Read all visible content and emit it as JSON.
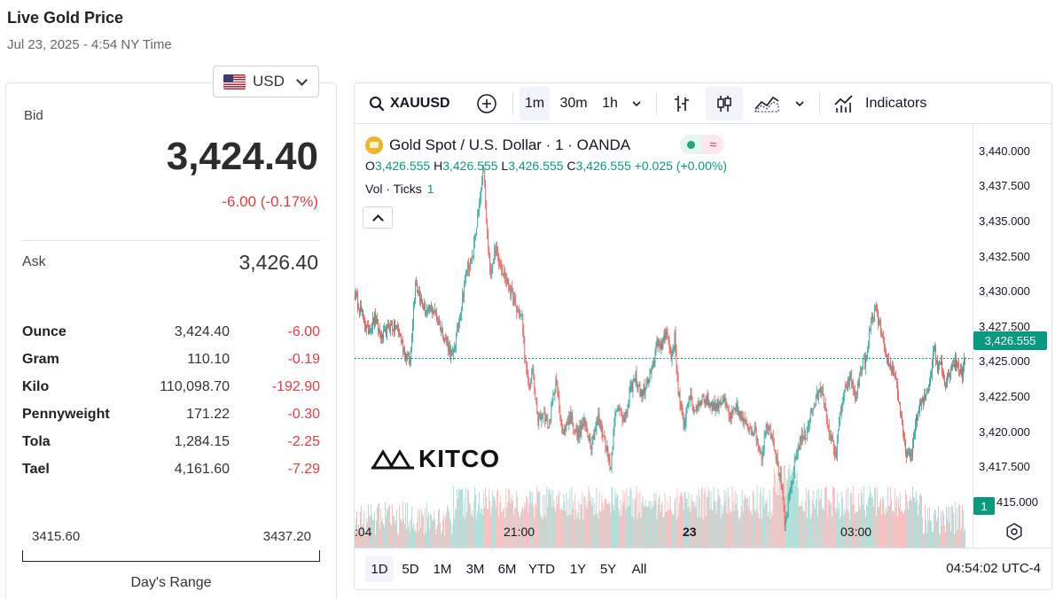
{
  "page": {
    "title": "Live Gold Price",
    "subtitle": "Jul 23, 2025 - 4:54 NY Time"
  },
  "currency": {
    "selected": "USD",
    "flag_icon": "us-flag-icon"
  },
  "quote": {
    "bid_label": "Bid",
    "bid": "3,424.40",
    "bid_change": "-6.00 (-0.17%)",
    "ask_label": "Ask",
    "ask": "3,426.40"
  },
  "units": [
    {
      "name": "Ounce",
      "price": "3,424.40",
      "change": "-6.00"
    },
    {
      "name": "Gram",
      "price": "110.10",
      "change": "-0.19"
    },
    {
      "name": "Kilo",
      "price": "110,098.70",
      "change": "-192.90"
    },
    {
      "name": "Pennyweight",
      "price": "171.22",
      "change": "-0.30"
    },
    {
      "name": "Tola",
      "price": "1,284.15",
      "change": "-2.25"
    },
    {
      "name": "Tael",
      "price": "4,161.60",
      "change": "-7.29"
    }
  ],
  "day_range": {
    "low": "3415.60",
    "high": "3437.20",
    "label": "Day's Range"
  },
  "chart_toolbar": {
    "symbol": "XAUUSD",
    "intervals": [
      "1m",
      "30m",
      "1h"
    ],
    "active_interval": "1m",
    "indicators_label": "Indicators"
  },
  "chart_legend": {
    "title": "Gold Spot / U.S. Dollar · 1 · OANDA",
    "o_label": "O",
    "o": "3,426.555",
    "h_label": "H",
    "h": "3,426.555",
    "l_label": "L",
    "l": "3,426.555",
    "c_label": "C",
    "c": "3,426.555",
    "change": "+0.025 (+0.00%)",
    "vol_label": "Vol · Ticks",
    "vol_value": "1",
    "watermark": "KITCO"
  },
  "chart_data": {
    "type": "candlestick",
    "symbol": "XAUUSD",
    "interval": "1m",
    "price_ticks": [
      "3,440.000",
      "3,437.500",
      "3,435.000",
      "3,432.500",
      "3,430.000",
      "3,427.500",
      "3,425.000",
      "3,422.500",
      "3,420.000",
      "3,417.500",
      "415.000"
    ],
    "y_range": [
      3414.9,
      3441.0
    ],
    "last_price": 3426.555,
    "last_price_label": "3,426.555",
    "volume_badge": "1",
    "time_ticks": [
      ":04",
      "21:00",
      "23",
      "03:00"
    ],
    "bold_time_tick": "23",
    "anchors": [
      [
        0,
        3430.5
      ],
      [
        6,
        3429.6
      ],
      [
        14,
        3428.2
      ],
      [
        22,
        3429.0
      ],
      [
        30,
        3427.8
      ],
      [
        40,
        3428.6
      ],
      [
        48,
        3428.4
      ],
      [
        56,
        3426.9
      ],
      [
        62,
        3426.4
      ],
      [
        68,
        3431.4
      ],
      [
        74,
        3430.1
      ],
      [
        80,
        3429.4
      ],
      [
        88,
        3429.6
      ],
      [
        96,
        3428.6
      ],
      [
        104,
        3427.4
      ],
      [
        110,
        3426.6
      ],
      [
        114,
        3427.9
      ],
      [
        120,
        3429.9
      ],
      [
        126,
        3432.1
      ],
      [
        132,
        3432.6
      ],
      [
        138,
        3435.2
      ],
      [
        142,
        3436.8
      ],
      [
        145,
        3438.3
      ],
      [
        148,
        3434.9
      ],
      [
        152,
        3431.8
      ],
      [
        158,
        3433.3
      ],
      [
        164,
        3432.4
      ],
      [
        170,
        3431.4
      ],
      [
        176,
        3430.6
      ],
      [
        182,
        3429.5
      ],
      [
        188,
        3429.1
      ],
      [
        192,
        3426.1
      ],
      [
        196,
        3424.7
      ],
      [
        200,
        3425.9
      ],
      [
        206,
        3422.6
      ],
      [
        212,
        3423.3
      ],
      [
        218,
        3422.3
      ],
      [
        226,
        3425.3
      ],
      [
        234,
        3421.9
      ],
      [
        242,
        3423.1
      ],
      [
        250,
        3421.8
      ],
      [
        258,
        3422.6
      ],
      [
        266,
        3421.3
      ],
      [
        274,
        3422.9
      ],
      [
        282,
        3421.4
      ],
      [
        288,
        3419.8
      ],
      [
        292,
        3422.9
      ],
      [
        298,
        3423.6
      ],
      [
        304,
        3422.6
      ],
      [
        310,
        3424.6
      ],
      [
        316,
        3425.4
      ],
      [
        322,
        3424.3
      ],
      [
        330,
        3425.1
      ],
      [
        336,
        3426.1
      ],
      [
        340,
        3427.9
      ],
      [
        344,
        3426.9
      ],
      [
        350,
        3428.4
      ],
      [
        356,
        3426.6
      ],
      [
        360,
        3427.8
      ],
      [
        364,
        3424.6
      ],
      [
        370,
        3422.3
      ],
      [
        376,
        3424.3
      ],
      [
        382,
        3423.3
      ],
      [
        390,
        3424.1
      ],
      [
        398,
        3423.9
      ],
      [
        406,
        3423.6
      ],
      [
        414,
        3424.1
      ],
      [
        422,
        3422.9
      ],
      [
        430,
        3423.5
      ],
      [
        438,
        3422.6
      ],
      [
        446,
        3422.3
      ],
      [
        452,
        3421.8
      ],
      [
        458,
        3420.6
      ],
      [
        464,
        3422.6
      ],
      [
        470,
        3421.9
      ],
      [
        476,
        3419.9
      ],
      [
        480,
        3418.9
      ],
      [
        484,
        3416.3
      ],
      [
        488,
        3417.6
      ],
      [
        492,
        3418.9
      ],
      [
        496,
        3420.5
      ],
      [
        502,
        3421.6
      ],
      [
        508,
        3421.9
      ],
      [
        514,
        3423.3
      ],
      [
        520,
        3424.1
      ],
      [
        526,
        3424.9
      ],
      [
        532,
        3422.3
      ],
      [
        538,
        3421.3
      ],
      [
        542,
        3420.6
      ],
      [
        546,
        3423.1
      ],
      [
        552,
        3424.6
      ],
      [
        558,
        3425.4
      ],
      [
        564,
        3424.1
      ],
      [
        570,
        3426.1
      ],
      [
        576,
        3426.4
      ],
      [
        580,
        3428.6
      ],
      [
        586,
        3429.6
      ],
      [
        590,
        3428.8
      ],
      [
        596,
        3426.9
      ],
      [
        602,
        3426.1
      ],
      [
        608,
        3425.6
      ],
      [
        612,
        3424.1
      ],
      [
        616,
        3422.3
      ],
      [
        620,
        3420.9
      ],
      [
        626,
        3420.4
      ],
      [
        630,
        3422.3
      ],
      [
        636,
        3423.6
      ],
      [
        642,
        3424.1
      ],
      [
        648,
        3425.4
      ],
      [
        652,
        3427.4
      ],
      [
        656,
        3425.9
      ],
      [
        660,
        3426.6
      ],
      [
        664,
        3424.9
      ],
      [
        668,
        3425.6
      ],
      [
        672,
        3426.1
      ],
      [
        676,
        3426.3
      ],
      [
        680,
        3426.1
      ],
      [
        684,
        3425.6
      ],
      [
        687,
        3426.555
      ]
    ]
  },
  "time_ranges": [
    "1D",
    "5D",
    "1M",
    "3M",
    "6M",
    "YTD",
    "1Y",
    "5Y",
    "All"
  ],
  "active_range": "1D",
  "clock": "04:54:02 UTC-4",
  "colors": {
    "up": "#26a69a",
    "down": "#ef5350",
    "accent": "#089981",
    "negative": "#e23b43"
  }
}
